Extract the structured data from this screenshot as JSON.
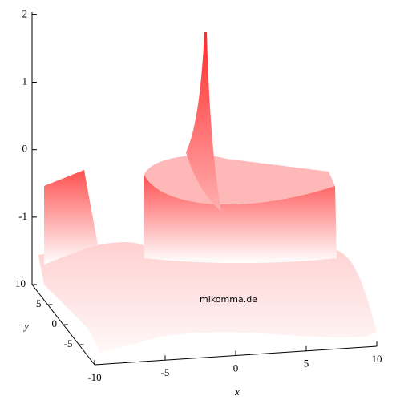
{
  "chart_data": {
    "type": "surface",
    "xlabel": "x",
    "ylabel": "y",
    "annotation": "mikomma.de",
    "xlim": [
      -10,
      10
    ],
    "xticks": [
      -10,
      -5,
      0,
      5,
      10
    ],
    "ylim": [
      -10,
      10
    ],
    "yticks": [
      -5,
      0,
      5,
      10
    ],
    "zlim": [
      -2,
      2.04
    ],
    "zticks": [
      -1,
      0,
      1,
      2
    ],
    "color": "#ff3a3a"
  }
}
